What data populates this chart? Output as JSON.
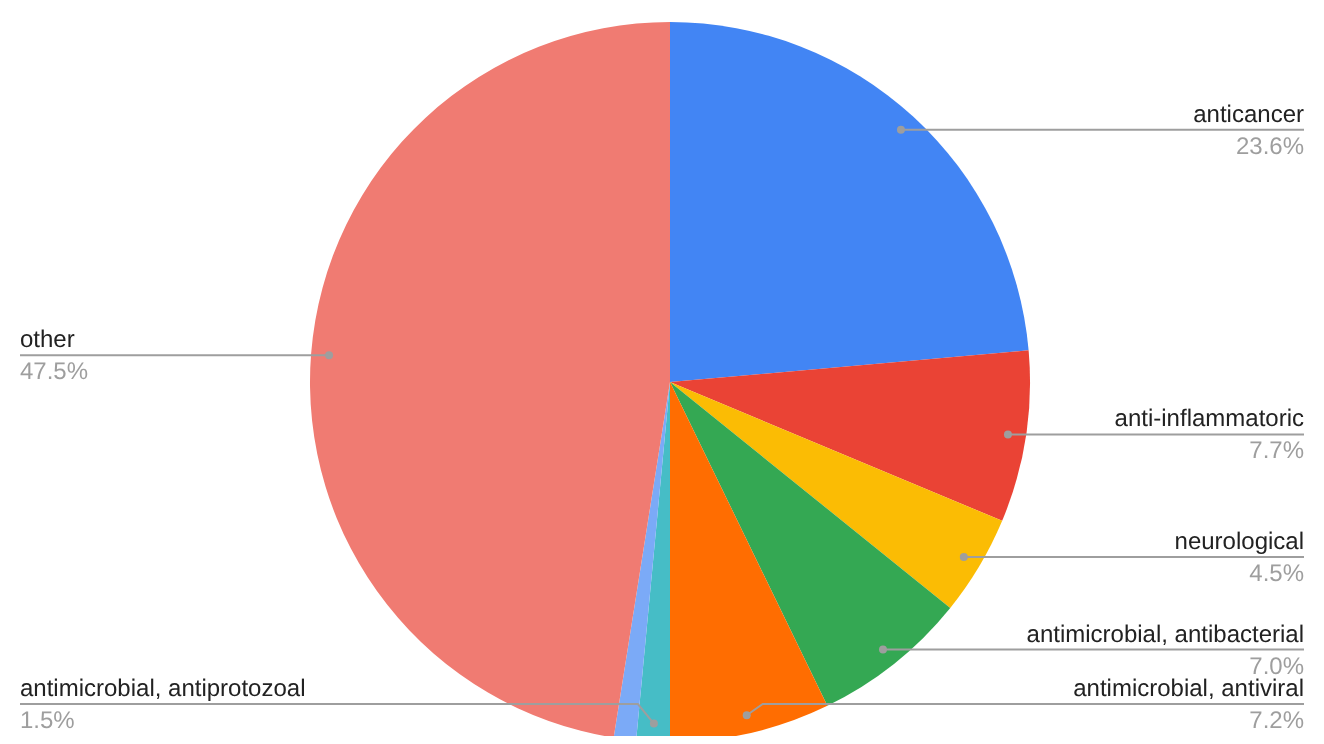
{
  "chart_data": {
    "type": "pie",
    "categories": [
      "anticancer",
      "anti-inflammatoric",
      "neurological",
      "antimicrobial, antibacterial",
      "antimicrobial, antiviral",
      "antimicrobial, antiprotozoal",
      null,
      "other"
    ],
    "values": [
      23.6,
      7.7,
      4.5,
      7.0,
      7.2,
      1.5,
      1.0,
      47.5
    ],
    "value_labels": [
      "23.6%",
      "7.7%",
      "4.5%",
      "7.0%",
      "7.2%",
      "1.5%",
      null,
      "47.5%"
    ],
    "colors": [
      "#4285f4",
      "#ea4335",
      "#fbbc04",
      "#34a853",
      "#ff6d01",
      "#46bdc6",
      "#7baaf7",
      "#f07b72"
    ]
  }
}
